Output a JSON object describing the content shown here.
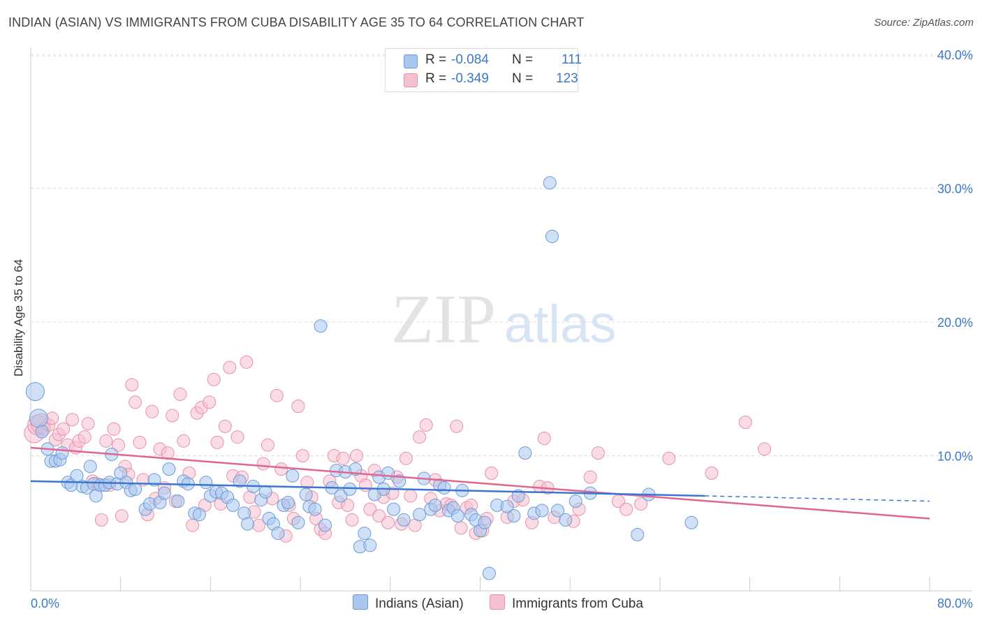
{
  "title": "INDIAN (ASIAN) VS IMMIGRANTS FROM CUBA DISABILITY AGE 35 TO 64 CORRELATION CHART",
  "source": "Source: ZipAtlas.com",
  "watermark": {
    "zip": "ZIP",
    "atlas": "atlas"
  },
  "legend": {
    "rows": [
      {
        "r_label": "R =",
        "r_value": "-0.084",
        "n_label": "N =",
        "n_value": "111",
        "color": "#a9c6ee",
        "border": "#6a9bd8"
      },
      {
        "r_label": "R =",
        "r_value": "-0.349",
        "n_label": "N =",
        "n_value": "123",
        "color": "#f6c0d0",
        "border": "#e890aa"
      }
    ]
  },
  "bottom_legend": {
    "series1": "Indians (Asian)",
    "series2": "Immigrants from Cuba"
  },
  "chart_data": {
    "type": "scatter",
    "title": "INDIAN (ASIAN) VS IMMIGRANTS FROM CUBA DISABILITY AGE 35 TO 64 CORRELATION CHART",
    "xlabel": "",
    "ylabel": "Disability Age 35 to 64",
    "xlim": [
      0,
      80
    ],
    "ylim": [
      0,
      40
    ],
    "x_tick_labels": [
      "0.0%",
      "80.0%"
    ],
    "y_ticks": [
      10,
      20,
      30,
      40
    ],
    "y_tick_labels": [
      "10.0%",
      "20.0%",
      "30.0%",
      "40.0%"
    ],
    "grid": true,
    "colors": {
      "series1_fill": "#a9c6ee",
      "series1_stroke": "#6a9bd8",
      "series1_line": "#3a75d0",
      "series2_fill": "#f6c0d0",
      "series2_stroke": "#e890aa",
      "series2_line": "#e06690",
      "axis_text": "#3b78c8"
    },
    "series": [
      {
        "name": "Indians (Asian)",
        "trend": {
          "x": [
            0,
            60
          ],
          "y": [
            8.1,
            7.0
          ],
          "dashed_to": [
            80,
            6.6
          ]
        },
        "points": [
          [
            0.4,
            14.8
          ],
          [
            0.7,
            12.8
          ],
          [
            1.0,
            11.8
          ],
          [
            1.5,
            10.5
          ],
          [
            1.8,
            9.6
          ],
          [
            2.2,
            9.6
          ],
          [
            2.6,
            9.7
          ],
          [
            2.8,
            10.2
          ],
          [
            3.3,
            8.0
          ],
          [
            3.6,
            7.8
          ],
          [
            4.1,
            8.5
          ],
          [
            4.6,
            7.7
          ],
          [
            5.0,
            7.6
          ],
          [
            5.3,
            9.2
          ],
          [
            5.6,
            7.9
          ],
          [
            5.8,
            7.0
          ],
          [
            6.2,
            7.8
          ],
          [
            6.6,
            7.8
          ],
          [
            7.0,
            8.0
          ],
          [
            7.2,
            10.1
          ],
          [
            7.7,
            7.9
          ],
          [
            8.0,
            8.7
          ],
          [
            8.5,
            8.0
          ],
          [
            8.9,
            7.4
          ],
          [
            9.3,
            7.5
          ],
          [
            10.2,
            6.0
          ],
          [
            10.6,
            6.4
          ],
          [
            11.0,
            8.2
          ],
          [
            11.5,
            6.5
          ],
          [
            11.9,
            7.2
          ],
          [
            12.3,
            9.0
          ],
          [
            13.1,
            6.6
          ],
          [
            13.6,
            8.1
          ],
          [
            14.0,
            7.9
          ],
          [
            14.6,
            5.7
          ],
          [
            15.0,
            5.6
          ],
          [
            15.6,
            8.0
          ],
          [
            16.0,
            7.0
          ],
          [
            16.5,
            7.3
          ],
          [
            17.0,
            7.2
          ],
          [
            17.5,
            6.9
          ],
          [
            18.0,
            6.3
          ],
          [
            18.6,
            8.1
          ],
          [
            19.0,
            5.7
          ],
          [
            19.3,
            4.9
          ],
          [
            19.8,
            7.7
          ],
          [
            20.5,
            6.7
          ],
          [
            20.9,
            7.3
          ],
          [
            21.2,
            5.3
          ],
          [
            21.6,
            4.9
          ],
          [
            22.0,
            4.2
          ],
          [
            22.5,
            6.3
          ],
          [
            22.9,
            6.5
          ],
          [
            23.3,
            8.5
          ],
          [
            23.8,
            5.0
          ],
          [
            24.5,
            7.1
          ],
          [
            24.8,
            6.2
          ],
          [
            25.3,
            6.0
          ],
          [
            25.8,
            19.7
          ],
          [
            26.2,
            4.8
          ],
          [
            26.8,
            7.6
          ],
          [
            27.2,
            8.9
          ],
          [
            27.6,
            7.0
          ],
          [
            28.0,
            8.8
          ],
          [
            28.4,
            7.5
          ],
          [
            28.9,
            9.0
          ],
          [
            29.3,
            3.2
          ],
          [
            29.7,
            4.2
          ],
          [
            30.2,
            3.3
          ],
          [
            30.6,
            7.1
          ],
          [
            31.0,
            8.4
          ],
          [
            31.4,
            7.5
          ],
          [
            31.8,
            8.7
          ],
          [
            32.3,
            6.0
          ],
          [
            32.8,
            8.1
          ],
          [
            33.2,
            5.2
          ],
          [
            34.6,
            5.6
          ],
          [
            35.0,
            8.3
          ],
          [
            35.6,
            6.0
          ],
          [
            36.0,
            6.3
          ],
          [
            36.4,
            7.8
          ],
          [
            36.8,
            7.6
          ],
          [
            37.2,
            5.9
          ],
          [
            37.6,
            6.1
          ],
          [
            38.0,
            5.5
          ],
          [
            38.4,
            7.4
          ],
          [
            39.2,
            5.6
          ],
          [
            39.6,
            5.2
          ],
          [
            40.0,
            4.4
          ],
          [
            40.4,
            5.0
          ],
          [
            40.8,
            1.2
          ],
          [
            41.5,
            6.3
          ],
          [
            42.4,
            6.2
          ],
          [
            43.0,
            5.5
          ],
          [
            43.4,
            7.0
          ],
          [
            44.0,
            10.2
          ],
          [
            44.8,
            5.7
          ],
          [
            45.5,
            5.9
          ],
          [
            46.2,
            30.4
          ],
          [
            46.4,
            26.4
          ],
          [
            46.9,
            5.9
          ],
          [
            47.6,
            5.2
          ],
          [
            48.5,
            6.6
          ],
          [
            49.8,
            7.2
          ],
          [
            54.0,
            4.1
          ],
          [
            55.0,
            7.1
          ],
          [
            58.8,
            5.0
          ]
        ]
      },
      {
        "name": "Immigrants from Cuba",
        "trend": {
          "x": [
            0,
            80
          ],
          "y": [
            10.6,
            5.3
          ]
        },
        "points": [
          [
            0.3,
            11.7
          ],
          [
            0.6,
            12.3
          ],
          [
            0.9,
            12.4
          ],
          [
            1.2,
            12.0
          ],
          [
            1.6,
            12.3
          ],
          [
            1.9,
            12.8
          ],
          [
            2.2,
            11.2
          ],
          [
            2.5,
            11.6
          ],
          [
            2.9,
            12.0
          ],
          [
            3.3,
            10.8
          ],
          [
            3.7,
            12.7
          ],
          [
            4.0,
            10.6
          ],
          [
            4.3,
            11.1
          ],
          [
            4.8,
            11.4
          ],
          [
            5.1,
            12.4
          ],
          [
            5.5,
            8.1
          ],
          [
            5.9,
            7.9
          ],
          [
            6.3,
            5.2
          ],
          [
            6.7,
            11.1
          ],
          [
            7.0,
            7.8
          ],
          [
            7.4,
            12.0
          ],
          [
            7.8,
            10.8
          ],
          [
            8.1,
            5.5
          ],
          [
            8.4,
            9.2
          ],
          [
            8.7,
            8.6
          ],
          [
            9.0,
            15.3
          ],
          [
            9.3,
            14.0
          ],
          [
            9.7,
            11.0
          ],
          [
            10.0,
            8.2
          ],
          [
            10.4,
            5.6
          ],
          [
            10.8,
            13.3
          ],
          [
            11.1,
            6.8
          ],
          [
            11.5,
            10.5
          ],
          [
            11.9,
            7.6
          ],
          [
            12.2,
            10.2
          ],
          [
            12.6,
            13.0
          ],
          [
            12.9,
            6.6
          ],
          [
            13.3,
            14.6
          ],
          [
            13.6,
            11.1
          ],
          [
            14.1,
            8.7
          ],
          [
            14.4,
            4.8
          ],
          [
            14.8,
            13.2
          ],
          [
            15.2,
            13.6
          ],
          [
            15.5,
            6.3
          ],
          [
            15.9,
            14.0
          ],
          [
            16.3,
            15.7
          ],
          [
            16.6,
            11.0
          ],
          [
            16.9,
            6.4
          ],
          [
            17.3,
            12.2
          ],
          [
            17.7,
            16.6
          ],
          [
            18.0,
            8.5
          ],
          [
            18.4,
            11.4
          ],
          [
            18.8,
            8.4
          ],
          [
            19.2,
            17.0
          ],
          [
            19.5,
            6.9
          ],
          [
            19.9,
            5.8
          ],
          [
            20.3,
            4.8
          ],
          [
            20.7,
            9.4
          ],
          [
            21.1,
            10.8
          ],
          [
            21.5,
            6.8
          ],
          [
            21.9,
            14.5
          ],
          [
            22.3,
            9.0
          ],
          [
            22.7,
            4.0
          ],
          [
            23.0,
            6.3
          ],
          [
            23.4,
            5.3
          ],
          [
            23.8,
            13.7
          ],
          [
            24.2,
            10.0
          ],
          [
            24.6,
            8.0
          ],
          [
            25.0,
            6.9
          ],
          [
            25.4,
            5.3
          ],
          [
            25.8,
            4.5
          ],
          [
            26.2,
            4.2
          ],
          [
            26.6,
            8.1
          ],
          [
            27.0,
            10.0
          ],
          [
            27.4,
            6.5
          ],
          [
            27.8,
            9.8
          ],
          [
            28.2,
            6.3
          ],
          [
            28.6,
            5.2
          ],
          [
            29.0,
            10.0
          ],
          [
            29.4,
            8.5
          ],
          [
            29.8,
            7.8
          ],
          [
            30.2,
            6.0
          ],
          [
            30.6,
            8.9
          ],
          [
            31.0,
            5.5
          ],
          [
            31.4,
            6.9
          ],
          [
            31.8,
            5.0
          ],
          [
            32.2,
            7.2
          ],
          [
            32.6,
            8.4
          ],
          [
            33.0,
            4.9
          ],
          [
            33.4,
            9.8
          ],
          [
            33.8,
            7.0
          ],
          [
            34.2,
            4.8
          ],
          [
            34.6,
            11.4
          ],
          [
            35.2,
            12.3
          ],
          [
            35.6,
            6.8
          ],
          [
            36.0,
            8.2
          ],
          [
            36.4,
            5.9
          ],
          [
            37.0,
            6.4
          ],
          [
            37.4,
            6.3
          ],
          [
            37.9,
            12.2
          ],
          [
            38.3,
            4.6
          ],
          [
            38.8,
            6.1
          ],
          [
            39.2,
            6.3
          ],
          [
            39.6,
            4.2
          ],
          [
            40.2,
            4.4
          ],
          [
            40.6,
            5.3
          ],
          [
            41.0,
            8.7
          ],
          [
            42.4,
            5.4
          ],
          [
            43.0,
            6.6
          ],
          [
            43.8,
            6.7
          ],
          [
            44.6,
            5.0
          ],
          [
            45.3,
            7.7
          ],
          [
            45.7,
            11.3
          ],
          [
            46.0,
            7.6
          ],
          [
            46.6,
            5.4
          ],
          [
            48.3,
            5.1
          ],
          [
            48.8,
            6.0
          ],
          [
            49.8,
            8.4
          ],
          [
            50.5,
            10.2
          ],
          [
            52.3,
            6.6
          ],
          [
            53.0,
            6.0
          ],
          [
            54.3,
            6.4
          ],
          [
            56.8,
            9.8
          ],
          [
            60.6,
            8.7
          ],
          [
            63.6,
            12.5
          ],
          [
            65.3,
            10.5
          ]
        ]
      }
    ]
  }
}
